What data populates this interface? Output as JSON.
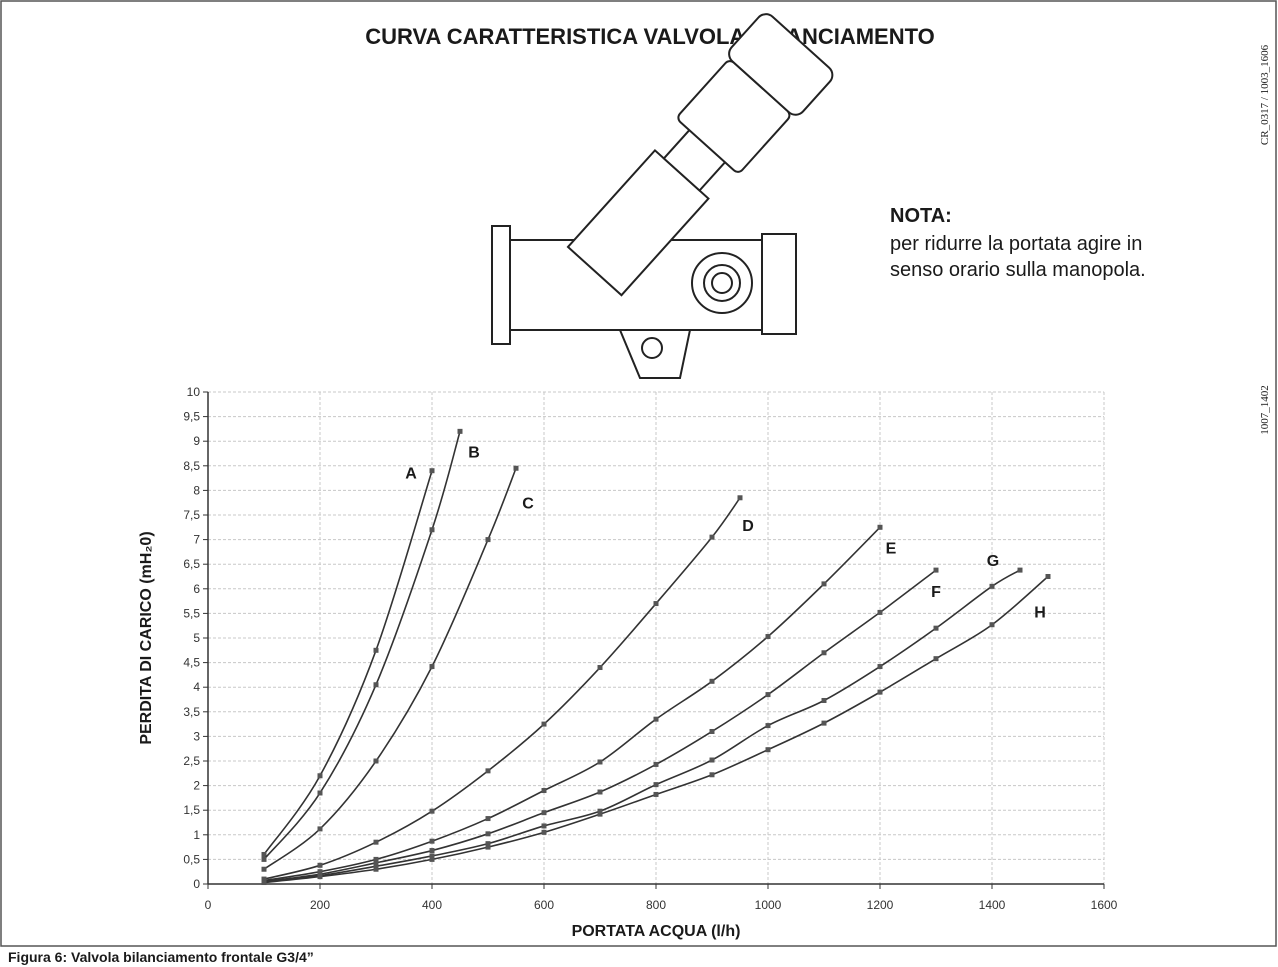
{
  "chart_data": {
    "type": "line",
    "title": "CURVA CARATTERISTICA VALVOLA BILANCIAMENTO",
    "xlabel": "PORTATA ACQUA (l/h)",
    "ylabel": "PERDITA DI CARICO (mH₂0)",
    "xlim": [
      0,
      1600
    ],
    "xticks": [
      0,
      200,
      400,
      600,
      800,
      1000,
      1200,
      1400,
      1600
    ],
    "ylim": [
      0,
      10
    ],
    "yticks": [
      0,
      {
        "value": 0.5,
        "label": "0,5"
      },
      1,
      {
        "value": 1.5,
        "label": "1,5"
      },
      2,
      {
        "value": 2.5,
        "label": "2,5"
      },
      3,
      {
        "value": 3.5,
        "label": "3,5"
      },
      4,
      {
        "value": 4.5,
        "label": "4,5"
      },
      5,
      {
        "value": 5.5,
        "label": "5,5"
      },
      6,
      {
        "value": 6.5,
        "label": "6,5"
      },
      7,
      {
        "value": 7.5,
        "label": "7,5"
      },
      8,
      {
        "value": 8.5,
        "label": "8,5"
      },
      9,
      {
        "value": 9.5,
        "label": "9,5"
      },
      10
    ],
    "grid": true,
    "series": [
      {
        "name": "A",
        "color": "#333333",
        "x": [
          100,
          200,
          300,
          400
        ],
        "values": [
          0.6,
          2.2,
          4.75,
          8.4
        ]
      },
      {
        "name": "B",
        "color": "#333333",
        "x": [
          100,
          200,
          300,
          400,
          450
        ],
        "values": [
          0.5,
          1.85,
          4.05,
          7.2,
          9.2
        ]
      },
      {
        "name": "C",
        "color": "#333333",
        "x": [
          100,
          200,
          300,
          400,
          500,
          550
        ],
        "values": [
          0.3,
          1.12,
          2.5,
          4.42,
          7.0,
          8.45
        ]
      },
      {
        "name": "D",
        "color": "#333333",
        "x": [
          100,
          200,
          300,
          400,
          500,
          600,
          700,
          800,
          900,
          950
        ],
        "values": [
          0.1,
          0.38,
          0.85,
          1.48,
          2.3,
          3.25,
          4.4,
          5.7,
          7.05,
          7.85
        ]
      },
      {
        "name": "E",
        "color": "#333333",
        "x": [
          100,
          200,
          300,
          400,
          500,
          600,
          700,
          800,
          900,
          1000,
          1100,
          1200
        ],
        "values": [
          0.07,
          0.25,
          0.5,
          0.87,
          1.33,
          1.9,
          2.48,
          3.35,
          4.12,
          5.03,
          6.1,
          7.25
        ]
      },
      {
        "name": "F",
        "color": "#333333",
        "x": [
          100,
          200,
          300,
          400,
          500,
          600,
          700,
          800,
          900,
          1000,
          1100,
          1200,
          1300
        ],
        "values": [
          0.05,
          0.2,
          0.43,
          0.68,
          1.02,
          1.45,
          1.87,
          2.43,
          3.1,
          3.85,
          4.7,
          5.52,
          6.38
        ]
      },
      {
        "name": "G",
        "color": "#333333",
        "x": [
          100,
          200,
          300,
          400,
          500,
          600,
          700,
          800,
          900,
          1000,
          1100,
          1200,
          1300,
          1400,
          1450
        ],
        "values": [
          0.04,
          0.17,
          0.36,
          0.57,
          0.82,
          1.18,
          1.48,
          2.02,
          2.52,
          3.22,
          3.73,
          4.42,
          5.2,
          6.05,
          6.38
        ]
      },
      {
        "name": "H",
        "color": "#333333",
        "x": [
          100,
          200,
          300,
          400,
          500,
          600,
          700,
          800,
          900,
          1000,
          1100,
          1200,
          1300,
          1400,
          1500
        ],
        "values": [
          0.03,
          0.15,
          0.3,
          0.5,
          0.75,
          1.05,
          1.42,
          1.82,
          2.22,
          2.73,
          3.27,
          3.9,
          4.58,
          5.27,
          6.25
        ]
      }
    ]
  },
  "note": {
    "heading": "NOTA:",
    "lines": [
      "per ridurre la portata agire in",
      "senso orario sulla manopola."
    ]
  },
  "caption": "Figura 6: Valvola bilanciamento frontale G3/4”",
  "codes": [
    "CR_0317 / 1003_1606",
    "1007_1402"
  ]
}
